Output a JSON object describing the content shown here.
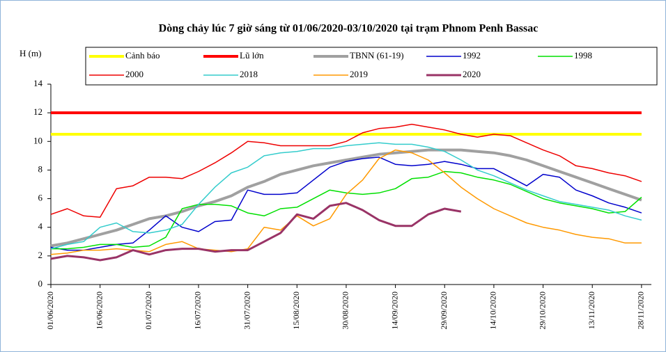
{
  "chart_data": {
    "type": "line",
    "title": "Dòng chảy lúc 7 giờ sáng từ 01/06/2020-03/10/2020 tại trạm Phnom Penh Bassac",
    "y_label": "H (m)",
    "x": [
      "01/06/2020",
      "06/06/2020",
      "11/06/2020",
      "16/06/2020",
      "21/06/2020",
      "26/06/2020",
      "01/07/2020",
      "06/07/2020",
      "11/07/2020",
      "16/07/2020",
      "21/07/2020",
      "26/07/2020",
      "31/07/2020",
      "05/08/2020",
      "10/08/2020",
      "15/08/2020",
      "20/08/2020",
      "25/08/2020",
      "30/08/2020",
      "04/09/2020",
      "09/09/2020",
      "14/09/2020",
      "19/09/2020",
      "24/09/2020",
      "29/09/2020",
      "04/10/2020",
      "09/10/2020",
      "14/10/2020",
      "19/10/2020",
      "24/10/2020",
      "29/10/2020",
      "03/11/2020",
      "08/11/2020",
      "13/11/2020",
      "18/11/2020",
      "23/11/2020",
      "28/11/2020"
    ],
    "xlim": [
      "01/06/2020",
      "01/12/2020"
    ],
    "xticks": [
      "01/06/2020",
      "16/06/2020",
      "01/07/2020",
      "16/07/2020",
      "31/07/2020",
      "15/08/2020",
      "30/08/2020",
      "14/09/2020",
      "29/09/2020",
      "14/10/2020",
      "29/10/2020",
      "13/11/2020",
      "28/11/2020"
    ],
    "ylim": [
      0,
      14
    ],
    "yticks": [
      0,
      2,
      4,
      6,
      8,
      10,
      12,
      14
    ],
    "grid": false,
    "series": [
      {
        "name": "Cảnh báo",
        "color": "#ffff00",
        "width": 4,
        "values": [
          10.5,
          10.5,
          10.5,
          10.5,
          10.5,
          10.5,
          10.5,
          10.5,
          10.5,
          10.5,
          10.5,
          10.5,
          10.5,
          10.5,
          10.5,
          10.5,
          10.5,
          10.5,
          10.5,
          10.5,
          10.5,
          10.5,
          10.5,
          10.5,
          10.5,
          10.5,
          10.5,
          10.5,
          10.5,
          10.5,
          10.5,
          10.5,
          10.5,
          10.5,
          10.5,
          10.5,
          10.5
        ]
      },
      {
        "name": "Lũ lớn",
        "color": "#ff0000",
        "width": 4,
        "values": [
          12,
          12,
          12,
          12,
          12,
          12,
          12,
          12,
          12,
          12,
          12,
          12,
          12,
          12,
          12,
          12,
          12,
          12,
          12,
          12,
          12,
          12,
          12,
          12,
          12,
          12,
          12,
          12,
          12,
          12,
          12,
          12,
          12,
          12,
          12,
          12,
          12
        ]
      },
      {
        "name": "TBNN (61-19)",
        "color": "#a0a0a0",
        "width": 4,
        "values": [
          2.7,
          2.9,
          3.2,
          3.5,
          3.8,
          4.2,
          4.6,
          4.8,
          5.1,
          5.5,
          5.8,
          6.2,
          6.8,
          7.2,
          7.7,
          8.0,
          8.3,
          8.5,
          8.7,
          8.9,
          9.1,
          9.2,
          9.3,
          9.4,
          9.4,
          9.4,
          9.3,
          9.2,
          9.0,
          8.7,
          8.3,
          7.9,
          7.5,
          7.1,
          6.7,
          6.3,
          5.9
        ]
      },
      {
        "name": "1992",
        "color": "#0000cc",
        "width": 1.5,
        "values": [
          2.6,
          2.4,
          2.4,
          2.6,
          2.8,
          2.9,
          3.8,
          4.8,
          4.0,
          3.7,
          4.4,
          4.5,
          6.6,
          6.3,
          6.3,
          6.4,
          7.3,
          8.2,
          8.6,
          8.8,
          8.9,
          8.4,
          8.3,
          8.4,
          8.6,
          8.4,
          8.1,
          8.1,
          7.5,
          6.9,
          7.7,
          7.5,
          6.6,
          6.2,
          5.7,
          5.4,
          5.0
        ]
      },
      {
        "name": "1998",
        "color": "#00e000",
        "width": 1.5,
        "values": [
          2.5,
          2.5,
          2.6,
          2.8,
          2.8,
          2.6,
          2.7,
          3.3,
          5.3,
          5.6,
          5.6,
          5.5,
          5.0,
          4.8,
          5.3,
          5.4,
          6.0,
          6.6,
          6.4,
          6.3,
          6.4,
          6.7,
          7.4,
          7.5,
          7.9,
          7.8,
          7.5,
          7.3,
          7.0,
          6.5,
          6.0,
          5.7,
          5.5,
          5.3,
          5.0,
          5.1,
          6.1
        ]
      },
      {
        "name": "2000",
        "color": "#ee0000",
        "width": 1.5,
        "values": [
          4.9,
          5.3,
          4.8,
          4.7,
          6.7,
          6.9,
          7.5,
          7.5,
          7.4,
          7.9,
          8.5,
          9.2,
          10.0,
          9.9,
          9.7,
          9.7,
          9.7,
          9.7,
          10.0,
          10.6,
          10.9,
          11.0,
          11.2,
          11.0,
          10.8,
          10.5,
          10.3,
          10.5,
          10.4,
          9.9,
          9.4,
          9.0,
          8.3,
          8.1,
          7.8,
          7.6,
          7.2
        ]
      },
      {
        "name": "2018",
        "color": "#33cccc",
        "width": 1.5,
        "values": [
          2.5,
          2.8,
          3.0,
          4.0,
          4.3,
          3.7,
          3.6,
          3.8,
          4.2,
          5.6,
          6.8,
          7.8,
          8.2,
          9.0,
          9.2,
          9.3,
          9.5,
          9.5,
          9.7,
          9.8,
          9.9,
          9.8,
          9.8,
          9.6,
          9.3,
          8.7,
          8.0,
          7.6,
          7.1,
          6.6,
          6.2,
          5.8,
          5.6,
          5.4,
          5.2,
          4.8,
          4.5
        ]
      },
      {
        "name": "2019",
        "color": "#ff9900",
        "width": 1.5,
        "values": [
          2.1,
          2.2,
          2.4,
          2.4,
          2.5,
          2.4,
          2.3,
          2.8,
          3.0,
          2.5,
          2.4,
          2.3,
          2.5,
          4.0,
          3.8,
          4.8,
          4.1,
          4.6,
          6.3,
          7.3,
          8.8,
          9.4,
          9.2,
          8.7,
          7.8,
          6.8,
          6.0,
          5.3,
          4.8,
          4.3,
          4.0,
          3.8,
          3.5,
          3.3,
          3.2,
          2.9,
          2.9
        ]
      },
      {
        "name": "2020",
        "color": "#993366",
        "width": 3,
        "values": [
          1.8,
          2.0,
          1.9,
          1.7,
          1.9,
          2.4,
          2.1,
          2.4,
          2.5,
          2.5,
          2.3,
          2.4,
          2.4,
          3.0,
          3.6,
          4.9,
          4.6,
          5.5,
          5.7,
          5.2,
          4.5,
          4.1,
          4.1,
          4.9,
          5.3,
          5.1,
          null,
          null,
          null,
          null,
          null,
          null,
          null,
          null,
          null,
          null,
          null
        ]
      }
    ]
  }
}
